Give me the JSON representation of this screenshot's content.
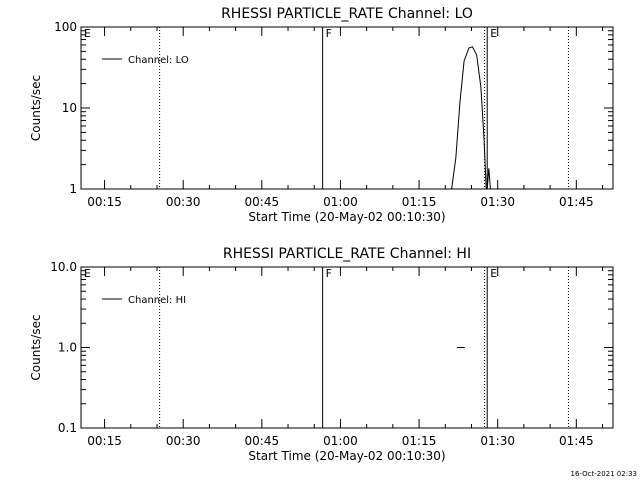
{
  "footer": {
    "timestamp": "16-Oct-2021 02:33"
  },
  "chart_data": [
    {
      "type": "line",
      "title": "RHESSI PARTICLE_RATE Channel: LO",
      "xlabel": "Start Time (20-May-02 00:10:30)",
      "ylabel": "Counts/sec",
      "yscale": "log",
      "ylim": [
        1,
        100
      ],
      "y_ticks": [
        1,
        10,
        100
      ],
      "y_tick_labels": [
        "1",
        "10",
        "100"
      ],
      "xlim_min": [
        10.5,
        112
      ],
      "x_ticks_min": [
        15,
        30,
        45,
        60,
        75,
        90,
        105
      ],
      "x_tick_labels": [
        "00:15",
        "00:30",
        "00:45",
        "01:00",
        "01:15",
        "01:30",
        "01:45"
      ],
      "legend": {
        "label": "Channel: LO",
        "position": "top-left"
      },
      "markers": [
        {
          "label": "E",
          "x_min": 10.5,
          "style": "dotted"
        },
        {
          "label": "",
          "x_min": 25.5,
          "style": "dotted"
        },
        {
          "label": "F",
          "x_min": 56.6,
          "style": "solid"
        },
        {
          "label": "",
          "x_min": 87.5,
          "style": "dotted"
        },
        {
          "label": "E",
          "x_min": 88.0,
          "style": "solid"
        },
        {
          "label": "",
          "x_min": 103.5,
          "style": "dotted"
        }
      ],
      "series": [
        {
          "name": "Channel: LO",
          "segments": [
            [
              [
                81.2,
                1.0
              ],
              [
                82.0,
                2.4
              ],
              [
                82.8,
                12
              ],
              [
                83.6,
                38
              ],
              [
                84.5,
                55
              ],
              [
                85.2,
                57
              ],
              [
                86.0,
                45
              ],
              [
                86.8,
                18
              ],
              [
                87.4,
                4
              ],
              [
                87.8,
                1.0
              ]
            ],
            [
              [
                88.0,
                1.0
              ],
              [
                88.3,
                1.8
              ],
              [
                88.6,
                1.0
              ]
            ]
          ]
        }
      ]
    },
    {
      "type": "line",
      "title": "RHESSI PARTICLE_RATE Channel: HI",
      "xlabel": "Start Time (20-May-02 00:10:30)",
      "ylabel": "Counts/sec",
      "yscale": "log",
      "ylim": [
        0.1,
        10
      ],
      "y_ticks": [
        0.1,
        1,
        10
      ],
      "y_tick_labels": [
        "0.1",
        "1.0",
        "10.0"
      ],
      "xlim_min": [
        10.5,
        112
      ],
      "x_ticks_min": [
        15,
        30,
        45,
        60,
        75,
        90,
        105
      ],
      "x_tick_labels": [
        "00:15",
        "00:30",
        "00:45",
        "01:00",
        "01:15",
        "01:30",
        "01:45"
      ],
      "legend": {
        "label": "Channel: HI",
        "position": "top-left"
      },
      "markers": [
        {
          "label": "E",
          "x_min": 10.5,
          "style": "dotted"
        },
        {
          "label": "",
          "x_min": 25.5,
          "style": "dotted"
        },
        {
          "label": "F",
          "x_min": 56.6,
          "style": "solid"
        },
        {
          "label": "",
          "x_min": 87.5,
          "style": "dotted"
        },
        {
          "label": "E",
          "x_min": 88.0,
          "style": "solid"
        },
        {
          "label": "",
          "x_min": 103.5,
          "style": "dotted"
        }
      ],
      "series": [
        {
          "name": "Channel: HI",
          "segments": [
            [
              [
                82.2,
                1.0
              ],
              [
                83.7,
                1.0
              ]
            ]
          ]
        }
      ]
    }
  ]
}
